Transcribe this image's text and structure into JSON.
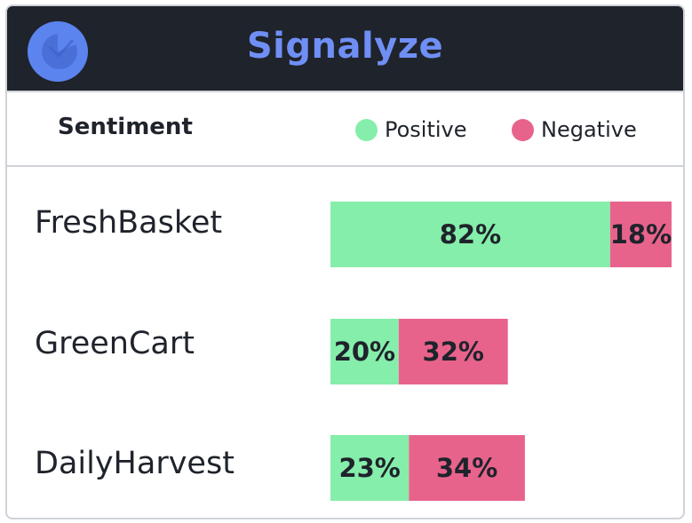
{
  "app": {
    "title": "Signalyze",
    "logo_icon": "pie-logo-icon"
  },
  "subheader": {
    "label": "Sentiment"
  },
  "colors": {
    "header_bg": "#1f232b",
    "title": "#6f8ff5",
    "positive": "#85eeaa",
    "negative": "#e8638c",
    "logo": "#5b84ef"
  },
  "chart_data": {
    "type": "bar",
    "orientation": "horizontal",
    "stacked": true,
    "categories": [
      "FreshBasket",
      "GreenCart",
      "DailyHarvest"
    ],
    "series": [
      {
        "name": "Positive",
        "values": [
          82,
          20,
          23
        ]
      },
      {
        "name": "Negative",
        "values": [
          18,
          32,
          34
        ]
      }
    ],
    "value_labels": {
      "Positive": [
        "82%",
        "20%",
        "23%"
      ],
      "Negative": [
        "18%",
        "32%",
        "34%"
      ]
    },
    "xlim": [
      0,
      100
    ],
    "legend_position": "top-right",
    "grid": false
  }
}
